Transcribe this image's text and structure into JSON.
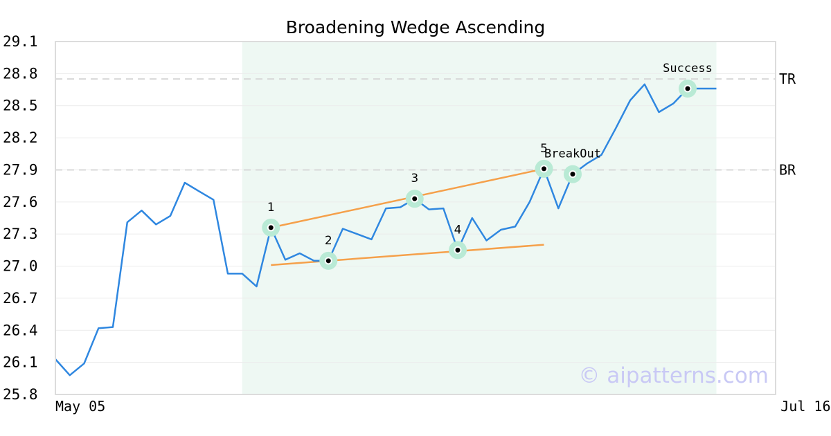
{
  "chart_data": {
    "type": "line",
    "title": "Broadening Wedge Ascending",
    "ylim": [
      25.8,
      29.1
    ],
    "y_ticks": [
      "29.1",
      "28.8",
      "28.5",
      "28.2",
      "27.9",
      "27.6",
      "27.3",
      "27.0",
      "26.7",
      "26.4",
      "26.1",
      "25.8"
    ],
    "x_tick_labels": [
      {
        "label": "May 05",
        "index": 0
      },
      {
        "label": "Jul 16",
        "index": 50
      }
    ],
    "grid": true,
    "series": [
      {
        "name": "",
        "color": "#2f87e0",
        "values": [
          26.13,
          25.98,
          26.09,
          26.42,
          26.43,
          27.41,
          27.52,
          27.39,
          27.47,
          27.78,
          27.7,
          27.62,
          26.93,
          26.93,
          26.81,
          27.36,
          27.06,
          27.12,
          27.05,
          27.05,
          27.35,
          27.3,
          27.25,
          27.54,
          27.55,
          27.63,
          27.53,
          27.54,
          27.15,
          27.45,
          27.24,
          27.34,
          27.37,
          27.6,
          27.91,
          27.54,
          27.86,
          27.96,
          28.04,
          28.29,
          28.55,
          28.7,
          28.44,
          28.52,
          28.66,
          28.66,
          28.66
        ]
      }
    ],
    "pattern_region": {
      "start_index": 13,
      "end_index": 46,
      "color": "#eef8f3"
    },
    "reference_lines": [
      {
        "label": "TR",
        "value": 28.75
      },
      {
        "label": "BR",
        "value": 27.9
      }
    ],
    "trend_lines": [
      {
        "color": "#f5a04a",
        "from": {
          "index": 15,
          "value": 27.36
        },
        "to": {
          "index": 34,
          "value": 27.91
        }
      },
      {
        "color": "#f5a04a",
        "from": {
          "index": 15,
          "value": 27.01
        },
        "to": {
          "index": 34,
          "value": 27.2
        }
      }
    ],
    "pattern_points": [
      {
        "label": "1",
        "index": 15,
        "value": 27.36
      },
      {
        "label": "2",
        "index": 19,
        "value": 27.05
      },
      {
        "label": "3",
        "index": 25,
        "value": 27.63
      },
      {
        "label": "4",
        "index": 28,
        "value": 27.15
      },
      {
        "label": "5",
        "index": 34,
        "value": 27.91
      }
    ],
    "annotations": [
      {
        "label": "BreakOut",
        "index": 36,
        "value": 27.86
      },
      {
        "label": "Success",
        "index": 44,
        "value": 28.66
      }
    ],
    "watermark": "© aipatterns.com",
    "marker_color": "#b9ead5"
  }
}
